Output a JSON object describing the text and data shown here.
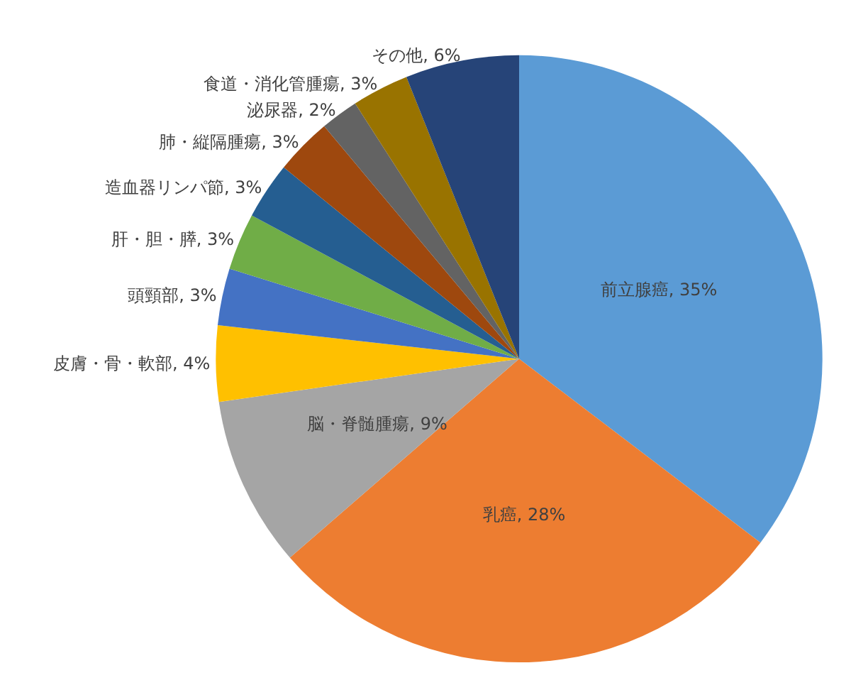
{
  "chart_data": {
    "type": "pie",
    "categories": [
      "前立腺癌",
      "乳癌",
      "脳・脊髄腫瘍",
      "皮膚・骨・軟部",
      "頭頸部",
      "肝・胆・膵",
      "造血器リンパ節",
      "肺・縦隔腫瘍",
      "泌尿器",
      "食道・消化管腫瘍",
      "その他"
    ],
    "values": [
      35,
      28,
      9,
      4,
      3,
      3,
      3,
      3,
      2,
      3,
      6
    ],
    "value_labels": [
      "35%",
      "28%",
      "9%",
      "4%",
      "3%",
      "3%",
      "3%",
      "3%",
      "2%",
      "3%",
      "6%"
    ],
    "colors": [
      "#5b9bd5",
      "#ed7d31",
      "#a5a5a5",
      "#ffc000",
      "#4472c4",
      "#70ad47",
      "#255e91",
      "#9e480e",
      "#636363",
      "#997300",
      "#264478"
    ],
    "legend": false
  }
}
